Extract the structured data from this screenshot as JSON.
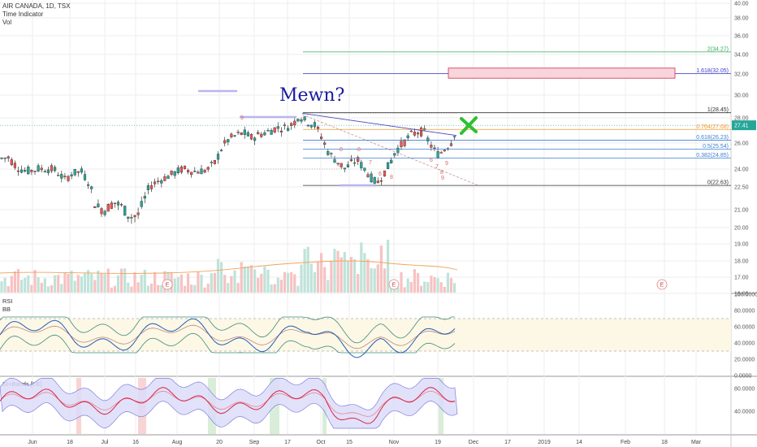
{
  "header": {
    "symbol_line": "AIR CANADA, 1D, TSX",
    "indicator1": "Time Indicator",
    "indicator2": "Vol"
  },
  "annotation_text": "Mewn?",
  "colors": {
    "up": "#26a69a",
    "down": "#ef5350",
    "fib": "#3b3bd0",
    "grid": "#eeeeee",
    "rsi_line": "#1f5fb4",
    "si_line": "#d8264b",
    "band": "#6b6bd8",
    "target_green": "#2fc02f"
  },
  "icons": {
    "target": "x-mark-icon",
    "earnings": "earnings-badge-icon"
  },
  "earnings_badge_label": "E",
  "chart_data": [
    {
      "type": "candlestick",
      "title": "AIR CANADA, 1D, TSX",
      "price_axis_ticks": [
        "40.00",
        "38.00",
        "36.00",
        "34.00",
        "32.00",
        "30.00",
        "28.00",
        "26.00",
        "24.00",
        "22.50",
        "21.00",
        "20.00",
        "19.00",
        "18.00",
        "17.00",
        "16.00"
      ],
      "ylim": [
        16,
        40
      ],
      "last_price_label": "27.41",
      "x_ticks": [
        "Jun",
        "18",
        "Jul",
        "16",
        "Aug",
        "20",
        "Sep",
        "17",
        "Oct",
        "15",
        "Nov",
        "19",
        "Dec",
        "17",
        "2019",
        "14",
        "Feb",
        "18",
        "Mar"
      ],
      "fib_levels": [
        {
          "label": "2(34.27)",
          "value": 34.27
        },
        {
          "label": "1.618(32.05)",
          "value": 32.05
        },
        {
          "label": "1(28.45)",
          "value": 28.45
        },
        {
          "label": "0.764(27.08)",
          "value": 27.08
        },
        {
          "label": "0.618(26.23)",
          "value": 26.23
        },
        {
          "label": "0.5(25.54)",
          "value": 25.54
        },
        {
          "label": "0.382(24.85)",
          "value": 24.85
        },
        {
          "label": "0(22.63)",
          "value": 22.63
        }
      ],
      "target_zone": [
        31.6,
        32.6
      ],
      "time_counts": [
        "9",
        "8",
        "8",
        "7",
        "6",
        "8",
        "9",
        "6",
        "7",
        "8",
        "9"
      ],
      "volume_legend": "Vol"
    },
    {
      "type": "line",
      "title": "RSI",
      "overlay": "BB",
      "ylim": [
        0,
        100
      ],
      "y_ticks": [
        "100.0000",
        "80.0000",
        "60.0000",
        "40.0000",
        "20.0000",
        "0.0000"
      ]
    },
    {
      "type": "line",
      "title": "SI+Bands [LB]",
      "y_ticks": [
        "80.0000",
        "40.0000"
      ]
    }
  ]
}
